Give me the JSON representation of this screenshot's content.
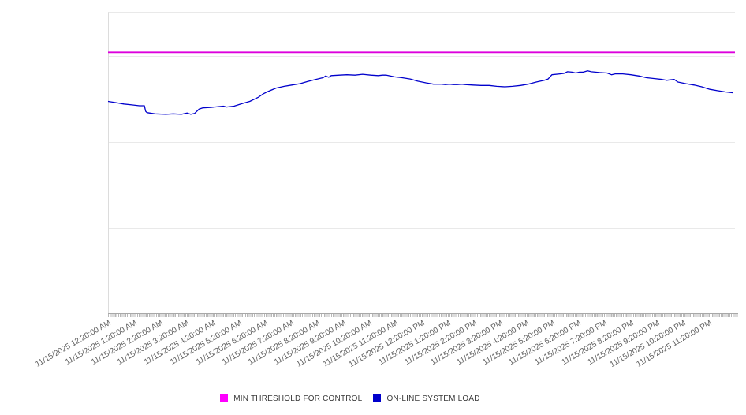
{
  "chart_data": {
    "type": "line",
    "title": "",
    "legend_position": "bottom",
    "x_axis": {
      "label": "",
      "tick_labels": [
        "11/15/2025 12:20:00 AM",
        "11/15/2025 1:20:00 AM",
        "11/15/2025 2:20:00 AM",
        "11/15/2025 3:20:00 AM",
        "11/15/2025 4:20:00 AM",
        "11/15/2025 5:20:00 AM",
        "11/15/2025 6:20:00 AM",
        "11/15/2025 7:20:00 AM",
        "11/15/2025 8:20:00 AM",
        "11/15/2025 9:20:00 AM",
        "11/15/2025 10:20:00 AM",
        "11/15/2025 11:20:00 AM",
        "11/15/2025 12:20:00 PM",
        "11/15/2025 1:20:00 PM",
        "11/15/2025 2:20:00 PM",
        "11/15/2025 3:20:00 PM",
        "11/15/2025 4:20:00 PM",
        "11/15/2025 5:20:00 PM",
        "11/15/2025 6:20:00 PM",
        "11/15/2025 7:20:00 PM",
        "11/15/2025 8:20:00 PM",
        "11/15/2025 9:20:00 PM",
        "11/15/2025 10:20:00 PM",
        "11/15/2025 11:20:00 PM"
      ],
      "minor_ticks": "dense (sub-hourly samples)"
    },
    "y_axis": {
      "label": "",
      "labeled": false,
      "gridline_divisions": 7,
      "range_units": [
        0,
        7
      ],
      "grid": true
    },
    "series": [
      {
        "name": "MIN THRESHOLD FOR CONTROL",
        "type": "constant-line",
        "color": "#dd00dd",
        "swatch_color": "#ff00ff",
        "value_units": 6.06
      },
      {
        "name": "ON-LINE SYSTEM LOAD",
        "type": "line",
        "color": "#0000cc",
        "swatch_color": "#0000cc",
        "points_format": "[fraction_of_time_axis, value_in_gridline_units]",
        "points": [
          [
            0.0,
            4.92
          ],
          [
            0.013,
            4.89
          ],
          [
            0.025,
            4.86
          ],
          [
            0.038,
            4.84
          ],
          [
            0.05,
            4.82
          ],
          [
            0.058,
            4.82
          ],
          [
            0.06,
            4.69
          ],
          [
            0.062,
            4.66
          ],
          [
            0.075,
            4.63
          ],
          [
            0.092,
            4.62
          ],
          [
            0.104,
            4.63
          ],
          [
            0.117,
            4.62
          ],
          [
            0.126,
            4.65
          ],
          [
            0.132,
            4.62
          ],
          [
            0.138,
            4.64
          ],
          [
            0.143,
            4.71
          ],
          [
            0.145,
            4.74
          ],
          [
            0.151,
            4.77
          ],
          [
            0.164,
            4.78
          ],
          [
            0.176,
            4.8
          ],
          [
            0.184,
            4.81
          ],
          [
            0.189,
            4.79
          ],
          [
            0.201,
            4.81
          ],
          [
            0.214,
            4.87
          ],
          [
            0.226,
            4.92
          ],
          [
            0.239,
            5.01
          ],
          [
            0.248,
            5.1
          ],
          [
            0.255,
            5.15
          ],
          [
            0.268,
            5.23
          ],
          [
            0.281,
            5.27
          ],
          [
            0.293,
            5.3
          ],
          [
            0.306,
            5.33
          ],
          [
            0.318,
            5.38
          ],
          [
            0.331,
            5.43
          ],
          [
            0.34,
            5.46
          ],
          [
            0.343,
            5.47
          ],
          [
            0.347,
            5.51
          ],
          [
            0.352,
            5.48
          ],
          [
            0.356,
            5.52
          ],
          [
            0.369,
            5.53
          ],
          [
            0.381,
            5.54
          ],
          [
            0.394,
            5.53
          ],
          [
            0.406,
            5.55
          ],
          [
            0.419,
            5.53
          ],
          [
            0.431,
            5.52
          ],
          [
            0.438,
            5.53
          ],
          [
            0.444,
            5.53
          ],
          [
            0.457,
            5.49
          ],
          [
            0.469,
            5.47
          ],
          [
            0.482,
            5.44
          ],
          [
            0.494,
            5.39
          ],
          [
            0.507,
            5.35
          ],
          [
            0.519,
            5.32
          ],
          [
            0.532,
            5.32
          ],
          [
            0.538,
            5.31
          ],
          [
            0.545,
            5.32
          ],
          [
            0.551,
            5.31
          ],
          [
            0.557,
            5.31
          ],
          [
            0.564,
            5.32
          ],
          [
            0.57,
            5.31
          ],
          [
            0.582,
            5.3
          ],
          [
            0.595,
            5.29
          ],
          [
            0.608,
            5.29
          ],
          [
            0.62,
            5.27
          ],
          [
            0.633,
            5.26
          ],
          [
            0.645,
            5.27
          ],
          [
            0.658,
            5.29
          ],
          [
            0.67,
            5.32
          ],
          [
            0.683,
            5.37
          ],
          [
            0.696,
            5.41
          ],
          [
            0.702,
            5.44
          ],
          [
            0.708,
            5.54
          ],
          [
            0.721,
            5.56
          ],
          [
            0.727,
            5.57
          ],
          [
            0.733,
            5.61
          ],
          [
            0.74,
            5.6
          ],
          [
            0.746,
            5.58
          ],
          [
            0.752,
            5.6
          ],
          [
            0.758,
            5.6
          ],
          [
            0.765,
            5.63
          ],
          [
            0.771,
            5.61
          ],
          [
            0.784,
            5.59
          ],
          [
            0.796,
            5.58
          ],
          [
            0.803,
            5.54
          ],
          [
            0.809,
            5.56
          ],
          [
            0.821,
            5.56
          ],
          [
            0.834,
            5.54
          ],
          [
            0.847,
            5.51
          ],
          [
            0.859,
            5.47
          ],
          [
            0.872,
            5.45
          ],
          [
            0.884,
            5.43
          ],
          [
            0.891,
            5.41
          ],
          [
            0.897,
            5.42
          ],
          [
            0.903,
            5.43
          ],
          [
            0.909,
            5.37
          ],
          [
            0.922,
            5.33
          ],
          [
            0.935,
            5.3
          ],
          [
            0.947,
            5.26
          ],
          [
            0.96,
            5.2
          ],
          [
            0.972,
            5.17
          ],
          [
            0.985,
            5.14
          ],
          [
            0.997,
            5.12
          ]
        ]
      }
    ]
  },
  "legend": {
    "items": [
      {
        "label": "MIN THRESHOLD FOR CONTROL",
        "color": "#ff00ff"
      },
      {
        "label": "ON-LINE SYSTEM LOAD",
        "color": "#0000cc"
      }
    ]
  }
}
